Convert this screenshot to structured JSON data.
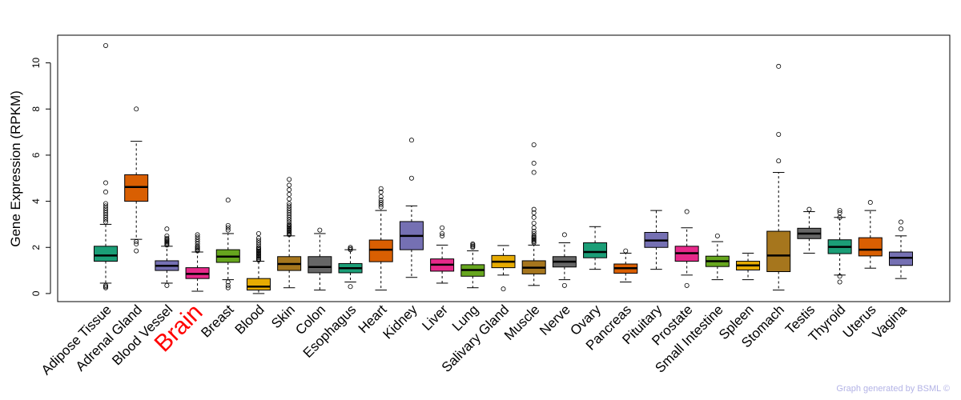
{
  "chart_data": {
    "type": "boxplot",
    "ylabel": "Gene Expression (RPKM)",
    "xlabel": "",
    "ylim": [
      -0.35,
      11.2
    ],
    "yticks": [
      0,
      2,
      4,
      6,
      8,
      10
    ],
    "highlight": "Brain",
    "highlight_color": "#ff0000",
    "categories": [
      "Adipose Tissue",
      "Adrenal Gland",
      "Blood Vessel",
      "Brain",
      "Breast",
      "Blood",
      "Skin",
      "Colon",
      "Esophagus",
      "Heart",
      "Kidney",
      "Liver",
      "Lung",
      "Salivary Gland",
      "Muscle",
      "Nerve",
      "Ovary",
      "Pancreas",
      "Pituitary",
      "Prostate",
      "Small Intestine",
      "Spleen",
      "Stomach",
      "Testis",
      "Thyroid",
      "Uterus",
      "Vagina"
    ],
    "colors": [
      "#1b9e77",
      "#d95f02",
      "#7570b3",
      "#e7298a",
      "#66a61e",
      "#e6ab02",
      "#a6761d",
      "#666666",
      "#1b9e77",
      "#d95f02",
      "#7570b3",
      "#e7298a",
      "#66a61e",
      "#e6ab02",
      "#a6761d",
      "#666666",
      "#1b9e77",
      "#d95f02",
      "#7570b3",
      "#e7298a",
      "#66a61e",
      "#e6ab02",
      "#a6761d",
      "#666666",
      "#1b9e77",
      "#d95f02",
      "#7570b3"
    ],
    "boxes": [
      {
        "whislo": 0.45,
        "q1": 1.4,
        "med": 1.65,
        "q3": 2.05,
        "whishi": 3.0,
        "fliers": [
          10.75,
          4.8,
          4.4,
          3.9,
          3.8,
          3.7,
          3.6,
          3.5,
          3.4,
          3.3,
          3.2,
          3.1,
          0.35,
          0.3,
          0.25
        ]
      },
      {
        "whislo": 2.35,
        "q1": 4.0,
        "med": 4.62,
        "q3": 5.15,
        "whishi": 6.6,
        "fliers": [
          8.0,
          2.25,
          2.15,
          1.85
        ]
      },
      {
        "whislo": 0.45,
        "q1": 1.0,
        "med": 1.2,
        "q3": 1.42,
        "whishi": 2.05,
        "fliers": [
          2.8,
          2.5,
          2.4,
          2.35,
          2.3,
          2.25,
          2.2,
          2.15,
          2.1,
          0.35
        ]
      },
      {
        "whislo": 0.1,
        "q1": 0.65,
        "med": 0.85,
        "q3": 1.12,
        "whishi": 1.8,
        "fliers": [
          2.55,
          2.45,
          2.35,
          2.25,
          2.15,
          2.05,
          2.0,
          1.95,
          1.9,
          1.85
        ]
      },
      {
        "whislo": 0.6,
        "q1": 1.35,
        "med": 1.6,
        "q3": 1.9,
        "whishi": 2.6,
        "fliers": [
          4.05,
          2.95,
          2.85,
          2.75,
          0.5,
          0.35,
          0.25
        ]
      },
      {
        "whislo": 0.0,
        "q1": 0.15,
        "med": 0.3,
        "q3": 0.65,
        "whishi": 1.4,
        "fliers": [
          2.6,
          2.4,
          2.3,
          2.2,
          2.1,
          2.0,
          1.95,
          1.9,
          1.85,
          1.8,
          1.75,
          1.7,
          1.65,
          1.6,
          1.55,
          1.5,
          1.45
        ]
      },
      {
        "whislo": 0.25,
        "q1": 1.0,
        "med": 1.28,
        "q3": 1.6,
        "whishi": 2.5,
        "fliers": [
          4.95,
          4.7,
          4.5,
          4.3,
          4.1,
          3.9,
          3.8,
          3.7,
          3.6,
          3.5,
          3.4,
          3.3,
          3.2,
          3.1,
          3.0,
          2.95,
          2.9,
          2.85,
          2.8,
          2.75,
          2.7,
          2.65,
          2.6,
          2.55
        ]
      },
      {
        "whislo": 0.15,
        "q1": 0.9,
        "med": 1.15,
        "q3": 1.6,
        "whishi": 2.6,
        "fliers": [
          2.75
        ]
      },
      {
        "whislo": 0.5,
        "q1": 0.9,
        "med": 1.1,
        "q3": 1.3,
        "whishi": 1.9,
        "fliers": [
          2.0,
          1.95,
          1.9,
          0.3
        ]
      },
      {
        "whislo": 0.15,
        "q1": 1.38,
        "med": 1.9,
        "q3": 2.32,
        "whishi": 3.6,
        "fliers": [
          4.55,
          4.4,
          4.2,
          4.05,
          3.95,
          3.85,
          3.75
        ]
      },
      {
        "whislo": 0.7,
        "q1": 1.9,
        "med": 2.5,
        "q3": 3.12,
        "whishi": 3.8,
        "fliers": [
          6.65,
          5.0
        ]
      },
      {
        "whislo": 0.45,
        "q1": 0.97,
        "med": 1.25,
        "q3": 1.5,
        "whishi": 2.1,
        "fliers": [
          2.85,
          2.6,
          2.5
        ]
      },
      {
        "whislo": 0.25,
        "q1": 0.75,
        "med": 1.02,
        "q3": 1.25,
        "whishi": 1.85,
        "fliers": [
          2.15,
          2.1,
          2.05,
          2.0
        ]
      },
      {
        "whislo": 0.8,
        "q1": 1.12,
        "med": 1.38,
        "q3": 1.65,
        "whishi": 2.08,
        "fliers": [
          0.2
        ]
      },
      {
        "whislo": 0.35,
        "q1": 0.85,
        "med": 1.12,
        "q3": 1.42,
        "whishi": 2.1,
        "fliers": [
          6.45,
          5.65,
          5.25,
          3.65,
          3.5,
          3.3,
          3.05,
          2.85,
          2.7,
          2.6,
          2.5,
          2.45,
          2.4,
          2.35,
          2.3,
          2.25,
          2.2
        ]
      },
      {
        "whislo": 0.6,
        "q1": 1.15,
        "med": 1.38,
        "q3": 1.6,
        "whishi": 2.2,
        "fliers": [
          2.55,
          0.35
        ]
      },
      {
        "whislo": 1.05,
        "q1": 1.55,
        "med": 1.8,
        "q3": 2.2,
        "whishi": 2.9,
        "fliers": []
      },
      {
        "whislo": 0.5,
        "q1": 0.88,
        "med": 1.1,
        "q3": 1.28,
        "whishi": 1.75,
        "fliers": [
          1.85
        ]
      },
      {
        "whislo": 1.05,
        "q1": 2.0,
        "med": 2.3,
        "q3": 2.65,
        "whishi": 3.6,
        "fliers": []
      },
      {
        "whislo": 0.8,
        "q1": 1.4,
        "med": 1.75,
        "q3": 2.05,
        "whishi": 2.85,
        "fliers": [
          3.55,
          0.35
        ]
      },
      {
        "whislo": 0.6,
        "q1": 1.17,
        "med": 1.4,
        "q3": 1.62,
        "whishi": 2.25,
        "fliers": [
          2.5
        ]
      },
      {
        "whislo": 0.6,
        "q1": 1.02,
        "med": 1.22,
        "q3": 1.4,
        "whishi": 1.75,
        "fliers": []
      },
      {
        "whislo": 0.15,
        "q1": 0.95,
        "med": 1.65,
        "q3": 2.7,
        "whishi": 5.25,
        "fliers": [
          9.85,
          6.9,
          5.75
        ]
      },
      {
        "whislo": 1.75,
        "q1": 2.38,
        "med": 2.6,
        "q3": 2.83,
        "whishi": 3.55,
        "fliers": [
          3.65
        ]
      },
      {
        "whislo": 0.8,
        "q1": 1.73,
        "med": 2.02,
        "q3": 2.33,
        "whishi": 3.3,
        "fliers": [
          3.6,
          3.5,
          3.3,
          0.75,
          0.5
        ]
      },
      {
        "whislo": 1.1,
        "q1": 1.63,
        "med": 1.9,
        "q3": 2.42,
        "whishi": 3.6,
        "fliers": [
          3.95
        ]
      },
      {
        "whislo": 0.65,
        "q1": 1.22,
        "med": 1.55,
        "q3": 1.8,
        "whishi": 2.5,
        "fliers": [
          3.1,
          2.8
        ]
      }
    ]
  },
  "credit": "Graph generated by BSML ©"
}
